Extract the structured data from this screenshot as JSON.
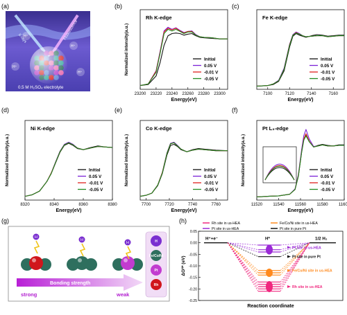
{
  "panel_labels": [
    "(a)",
    "(b)",
    "(c)",
    "(d)",
    "(e)",
    "(f)",
    "(g)",
    "(h)"
  ],
  "legend_entries": [
    "Initial",
    "0.05 V",
    "-0.01 V",
    "-0.05 V"
  ],
  "series_colors": {
    "Initial": "#111111",
    "0.05 V": "#7a1fd6",
    "-0.01 V": "#e0201c",
    "-0.05 V": "#1f8a1f"
  },
  "panel_a": {
    "beam_label_left": "X-rays",
    "beam_label_right": "Fluorescence",
    "electrolyte_label": "0.5 M H₂SO₄ electrolyte",
    "hplus_labels": [
      "H⁺",
      "H⁺",
      "H⁺",
      "H⁺"
    ]
  },
  "panel_g": {
    "arrow_label": "Bonding strength",
    "strong_label": "strong",
    "weak_label": "weak",
    "hydrogen_symbol": "H",
    "legend_items": [
      "H",
      "Fe/Co/Ni",
      "Pt",
      "Rh"
    ],
    "colors": {
      "H": "#7a2fd0",
      "Fe/Co/Ni": "#2e6f5e",
      "Pt": "#c23bd0",
      "Rh": "#d0161c"
    }
  },
  "chart_data": [
    {
      "panel": "(b)",
      "type": "line",
      "title": "Rh K-edge",
      "xlabel": "Energy(eV)",
      "ylabel": "Normalized intensity(a.u.)",
      "xlim": [
        23200,
        23310
      ],
      "xticks": [
        23200,
        23220,
        23240,
        23260,
        23280,
        23300
      ],
      "x": [
        23200,
        23210,
        23220,
        23225,
        23230,
        23235,
        23240,
        23245,
        23250,
        23255,
        23260,
        23265,
        23270,
        23275,
        23280,
        23290,
        23300,
        23310
      ],
      "series": [
        {
          "name": "Initial",
          "values": [
            0.02,
            0.04,
            0.2,
            0.45,
            0.78,
            0.96,
            1.0,
            1.01,
            1.0,
            0.97,
            0.99,
            1.0,
            0.96,
            0.93,
            0.92,
            0.91,
            0.9,
            0.9
          ]
        },
        {
          "name": "0.05 V",
          "values": [
            0.02,
            0.05,
            0.3,
            0.66,
            1.05,
            1.12,
            1.08,
            1.11,
            1.06,
            1.02,
            1.04,
            1.05,
            0.98,
            0.94,
            0.93,
            0.92,
            0.9,
            0.9
          ]
        },
        {
          "name": "-0.01 V",
          "values": [
            0.02,
            0.05,
            0.29,
            0.64,
            1.03,
            1.1,
            1.07,
            1.1,
            1.05,
            1.01,
            1.04,
            1.04,
            0.97,
            0.94,
            0.93,
            0.92,
            0.9,
            0.9
          ]
        },
        {
          "name": "-0.05 V",
          "values": [
            0.02,
            0.05,
            0.27,
            0.62,
            1.0,
            1.08,
            1.05,
            1.08,
            1.04,
            1.0,
            1.03,
            1.03,
            0.97,
            0.94,
            0.93,
            0.92,
            0.9,
            0.9
          ]
        }
      ]
    },
    {
      "panel": "(c)",
      "type": "line",
      "title": "Fe K-edge",
      "xlabel": "Energy(eV)",
      "ylabel": "",
      "xlim": [
        7090,
        7170
      ],
      "xticks": [
        7100,
        7120,
        7140,
        7160
      ],
      "x": [
        7090,
        7100,
        7105,
        7110,
        7115,
        7120,
        7123,
        7126,
        7129,
        7132,
        7135,
        7140,
        7145,
        7150,
        7155,
        7160,
        7165,
        7170
      ],
      "series": [
        {
          "name": "Initial",
          "values": [
            0.01,
            0.02,
            0.04,
            0.1,
            0.3,
            0.75,
            0.95,
            1.0,
            0.97,
            0.95,
            0.93,
            0.96,
            0.98,
            0.97,
            0.95,
            0.96,
            0.97,
            0.97
          ]
        },
        {
          "name": "0.05 V",
          "values": [
            0.01,
            0.02,
            0.05,
            0.12,
            0.35,
            0.8,
            0.98,
            1.03,
            1.0,
            0.96,
            0.94,
            0.95,
            0.96,
            0.96,
            0.94,
            0.95,
            0.96,
            0.96
          ]
        },
        {
          "name": "-0.01 V",
          "values": [
            0.01,
            0.02,
            0.05,
            0.11,
            0.33,
            0.79,
            0.97,
            1.02,
            0.99,
            0.96,
            0.94,
            0.95,
            0.96,
            0.96,
            0.94,
            0.95,
            0.96,
            0.96
          ]
        },
        {
          "name": "-0.05 V",
          "values": [
            0.01,
            0.02,
            0.05,
            0.11,
            0.33,
            0.78,
            0.97,
            1.01,
            0.99,
            0.96,
            0.94,
            0.95,
            0.96,
            0.96,
            0.94,
            0.95,
            0.96,
            0.96
          ]
        }
      ]
    },
    {
      "panel": "(d)",
      "type": "line",
      "title": "Ni K-edge",
      "xlabel": "Energy(eV)",
      "ylabel": "Normalized intensity(a.u.)",
      "xlim": [
        8320,
        8380
      ],
      "xticks": [
        8320,
        8340,
        8360,
        8380
      ],
      "x": [
        8320,
        8325,
        8330,
        8335,
        8338,
        8341,
        8344,
        8347,
        8350,
        8353,
        8356,
        8360,
        8365,
        8370,
        8375,
        8380
      ],
      "series": [
        {
          "name": "Initial",
          "values": [
            0.02,
            0.05,
            0.12,
            0.3,
            0.45,
            0.65,
            0.85,
            0.98,
            1.02,
            0.98,
            0.92,
            0.9,
            0.94,
            0.97,
            0.95,
            0.94
          ]
        },
        {
          "name": "0.05 V",
          "values": [
            0.02,
            0.05,
            0.12,
            0.3,
            0.46,
            0.67,
            0.87,
            1.0,
            1.04,
            1.0,
            0.93,
            0.9,
            0.93,
            0.96,
            0.95,
            0.94
          ]
        },
        {
          "name": "-0.01 V",
          "values": [
            0.02,
            0.05,
            0.12,
            0.3,
            0.46,
            0.66,
            0.86,
            0.99,
            1.03,
            0.99,
            0.93,
            0.9,
            0.93,
            0.96,
            0.95,
            0.94
          ]
        },
        {
          "name": "-0.05 V",
          "values": [
            0.02,
            0.05,
            0.12,
            0.3,
            0.45,
            0.66,
            0.86,
            0.99,
            1.03,
            0.99,
            0.93,
            0.9,
            0.93,
            0.96,
            0.95,
            0.94
          ]
        }
      ]
    },
    {
      "panel": "(e)",
      "type": "line",
      "title": "Co K-edge",
      "xlabel": "Energy(eV)",
      "ylabel": "Normalized intensity(a.u.)",
      "xlim": [
        7695,
        7770
      ],
      "xticks": [
        7700,
        7720,
        7740,
        7760
      ],
      "x": [
        7695,
        7700,
        7705,
        7710,
        7714,
        7718,
        7721,
        7724,
        7727,
        7730,
        7735,
        7740,
        7745,
        7750,
        7760,
        7770
      ],
      "series": [
        {
          "name": "Initial",
          "values": [
            0.02,
            0.04,
            0.08,
            0.22,
            0.45,
            0.8,
            0.98,
            1.0,
            0.96,
            0.9,
            0.86,
            0.9,
            0.92,
            0.91,
            0.89,
            0.88
          ]
        },
        {
          "name": "0.05 V",
          "values": [
            0.02,
            0.04,
            0.08,
            0.23,
            0.47,
            0.84,
            1.02,
            1.04,
            0.98,
            0.91,
            0.86,
            0.89,
            0.91,
            0.9,
            0.88,
            0.88
          ]
        },
        {
          "name": "-0.01 V",
          "values": [
            0.02,
            0.04,
            0.08,
            0.23,
            0.47,
            0.83,
            1.01,
            1.03,
            0.97,
            0.91,
            0.86,
            0.89,
            0.91,
            0.9,
            0.88,
            0.88
          ]
        },
        {
          "name": "-0.05 V",
          "values": [
            0.02,
            0.04,
            0.08,
            0.23,
            0.46,
            0.83,
            1.01,
            1.03,
            0.97,
            0.91,
            0.86,
            0.89,
            0.91,
            0.9,
            0.88,
            0.88
          ]
        }
      ]
    },
    {
      "panel": "(f)",
      "type": "line",
      "title": "Pt L₃-edge",
      "xlabel": "Energy(eV)",
      "ylabel": "Normalized intensity(a.u.)",
      "xlim": [
        11520,
        11600
      ],
      "xticks": [
        11520,
        11540,
        11560,
        11580,
        11600
      ],
      "x": [
        11520,
        11530,
        11540,
        11550,
        11555,
        11558,
        11561,
        11563,
        11565,
        11568,
        11572,
        11576,
        11580,
        11585,
        11590,
        11595,
        11600
      ],
      "series": [
        {
          "name": "Initial",
          "values": [
            0.01,
            0.02,
            0.03,
            0.06,
            0.15,
            0.4,
            0.85,
            1.08,
            1.18,
            1.05,
            0.95,
            0.98,
            1.0,
            0.98,
            0.97,
            0.99,
            0.99
          ]
        },
        {
          "name": "0.05 V",
          "values": [
            0.01,
            0.02,
            0.03,
            0.06,
            0.16,
            0.43,
            0.9,
            1.16,
            1.28,
            1.1,
            0.96,
            0.97,
            0.99,
            0.97,
            0.97,
            0.98,
            0.98
          ]
        },
        {
          "name": "-0.01 V",
          "values": [
            0.01,
            0.02,
            0.03,
            0.06,
            0.15,
            0.41,
            0.86,
            1.1,
            1.2,
            1.06,
            0.95,
            0.97,
            0.99,
            0.97,
            0.97,
            0.98,
            0.98
          ]
        },
        {
          "name": "-0.05 V",
          "values": [
            0.01,
            0.02,
            0.03,
            0.06,
            0.15,
            0.4,
            0.85,
            1.08,
            1.16,
            1.05,
            0.95,
            0.97,
            0.99,
            0.97,
            0.97,
            0.98,
            0.98
          ]
        }
      ]
    },
    {
      "panel": "(h)",
      "type": "line",
      "title": "",
      "xlabel": "Reaction coordinate",
      "ylabel": "ΔGᴴ* (eV)",
      "ylim": [
        -0.25,
        0.05
      ],
      "yticks": [
        "0.05",
        "0.00",
        "-0.05",
        "-0.10",
        "-0.15",
        "-0.20",
        "-0.25"
      ],
      "states": [
        "H⁺+e⁻",
        "H*",
        "1/2 H₂"
      ],
      "legend": [
        "Rh site in us-HEA",
        "Fe/Co/Ni site in us-HEA",
        "Pt site in us-HEA",
        "Pt site in pure Pt"
      ],
      "end_labels": [
        "Pt site in us-HEA",
        "Pt site in pure Pt",
        "Fe/Co/Ni site in us-HEA",
        "Rh site in us-HEA"
      ],
      "colors": {
        "Rh site in us-HEA": "#f0287f",
        "Fe/Co/Ni site in us-HEA": "#ff8a1e",
        "Pt site in us-HEA": "#9b2ad6",
        "Pt site in pure Pt": "#111111"
      },
      "series": [
        {
          "name": "Pt site in us-HEA",
          "values": [
            0,
            -0.01,
            0
          ]
        },
        {
          "name": "Pt site in us-HEA",
          "values": [
            0,
            -0.03,
            0
          ]
        },
        {
          "name": "Pt site in us-HEA",
          "values": [
            0,
            -0.04,
            0
          ]
        },
        {
          "name": "Pt site in pure Pt",
          "values": [
            0,
            -0.06,
            0
          ]
        },
        {
          "name": "Fe/Co/Ni site in us-HEA",
          "values": [
            0,
            -0.12,
            0
          ]
        },
        {
          "name": "Fe/Co/Ni site in us-HEA",
          "values": [
            0,
            -0.13,
            0
          ]
        },
        {
          "name": "Fe/Co/Ni site in us-HEA",
          "values": [
            0,
            -0.14,
            0
          ]
        },
        {
          "name": "Rh site in us-HEA",
          "values": [
            0,
            -0.17,
            0
          ]
        },
        {
          "name": "Rh site in us-HEA",
          "values": [
            0,
            -0.18,
            0
          ]
        },
        {
          "name": "Rh site in us-HEA",
          "values": [
            0,
            -0.19,
            0
          ]
        },
        {
          "name": "Rh site in us-HEA",
          "values": [
            0,
            -0.2,
            0
          ]
        },
        {
          "name": "Rh site in us-HEA",
          "values": [
            0,
            -0.21,
            0
          ]
        }
      ]
    }
  ]
}
